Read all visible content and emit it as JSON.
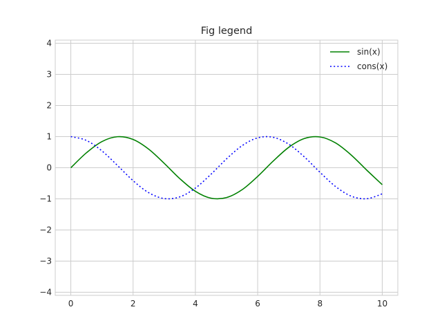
{
  "chart_data": {
    "type": "line",
    "title": "Fig legend",
    "xlabel": "",
    "ylabel": "",
    "xlim": [
      -0.5,
      10.5
    ],
    "ylim": [
      -4.1,
      4.1
    ],
    "xticks": [
      0,
      2,
      4,
      6,
      8,
      10
    ],
    "yticks": [
      -4,
      -3,
      -2,
      -1,
      0,
      1,
      2,
      3,
      4
    ],
    "ytick_labels": [
      "−4",
      "−3",
      "−2",
      "−1",
      "0",
      "1",
      "2",
      "3",
      "4"
    ],
    "grid": true,
    "legend_position": "top-right",
    "x": [
      0,
      0.5,
      1,
      1.5,
      2,
      2.5,
      3,
      3.5,
      4,
      4.5,
      5,
      5.5,
      6,
      6.5,
      7,
      7.5,
      8,
      8.5,
      9,
      9.5,
      10
    ],
    "series": [
      {
        "name": "sin(x)",
        "color": "#008000",
        "line_style": "solid",
        "values": [
          0,
          0.479,
          0.841,
          0.997,
          0.909,
          0.598,
          0.141,
          -0.351,
          -0.757,
          -0.978,
          -0.959,
          -0.706,
          -0.279,
          0.215,
          0.657,
          0.938,
          0.989,
          0.798,
          0.412,
          -0.075,
          -0.544
        ]
      },
      {
        "name": "cons(x)",
        "color": "#0000ff",
        "line_style": "dotted",
        "values": [
          1,
          0.878,
          0.54,
          0.071,
          -0.416,
          -0.801,
          -0.99,
          -0.936,
          -0.654,
          -0.211,
          0.284,
          0.709,
          0.96,
          0.977,
          0.754,
          0.347,
          -0.146,
          -0.602,
          -0.911,
          -0.997,
          -0.839
        ]
      }
    ]
  }
}
